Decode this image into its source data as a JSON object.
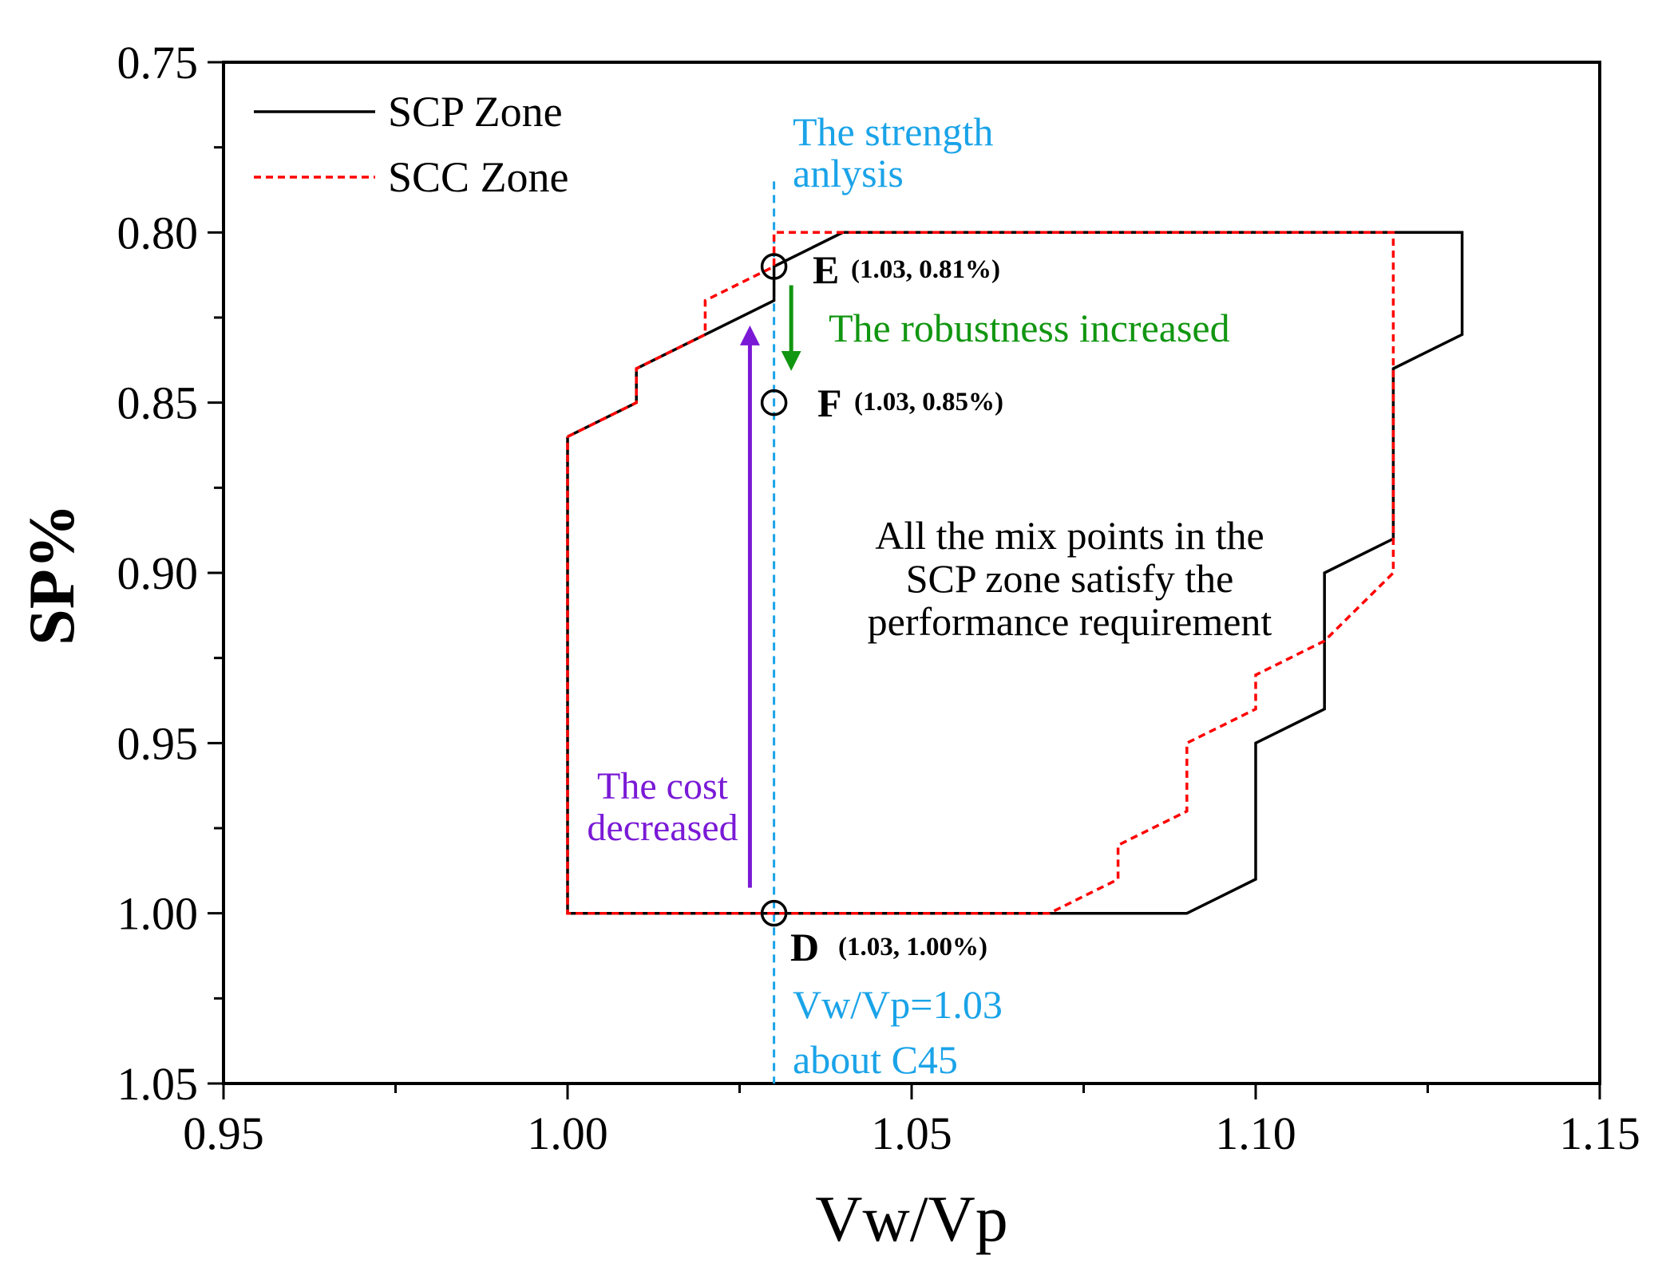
{
  "chart_data": {
    "type": "line",
    "xlabel": "Vw/Vp",
    "ylabel": "SP%",
    "xlim": [
      0.95,
      1.15
    ],
    "ylim": [
      0.75,
      1.05
    ],
    "y_inverted": true,
    "x_ticks": [
      0.95,
      1.0,
      1.05,
      1.1,
      1.15
    ],
    "x_tick_labels": [
      "0.95",
      "1.00",
      "1.05",
      "1.10",
      "1.15"
    ],
    "y_ticks": [
      0.75,
      0.8,
      0.85,
      0.9,
      0.95,
      1.0,
      1.05
    ],
    "y_tick_labels": [
      "0.75",
      "0.80",
      "0.85",
      "0.90",
      "0.95",
      "1.00",
      "1.05"
    ],
    "legend": {
      "position": "top-left",
      "entries": [
        {
          "label": "SCP Zone",
          "color": "#000000",
          "style": "solid"
        },
        {
          "label": "SCC Zone",
          "color": "#ff0000",
          "style": "dotted"
        }
      ]
    },
    "series": [
      {
        "name": "SCP Zone",
        "color": "#000000",
        "style": "solid",
        "points": [
          [
            1.0,
            0.86
          ],
          [
            1.01,
            0.85
          ],
          [
            1.01,
            0.84
          ],
          [
            1.03,
            0.82
          ],
          [
            1.03,
            0.81
          ],
          [
            1.04,
            0.8
          ],
          [
            1.13,
            0.8
          ],
          [
            1.13,
            0.83
          ],
          [
            1.12,
            0.84
          ],
          [
            1.12,
            0.89
          ],
          [
            1.11,
            0.9
          ],
          [
            1.11,
            0.94
          ],
          [
            1.1,
            0.95
          ],
          [
            1.1,
            0.99
          ],
          [
            1.09,
            1.0
          ],
          [
            1.0,
            1.0
          ],
          [
            1.0,
            0.86
          ]
        ]
      },
      {
        "name": "SCC Zone",
        "color": "#ff0000",
        "style": "dotted",
        "points": [
          [
            1.0,
            0.86
          ],
          [
            1.01,
            0.85
          ],
          [
            1.01,
            0.84
          ],
          [
            1.02,
            0.83
          ],
          [
            1.02,
            0.82
          ],
          [
            1.03,
            0.81
          ],
          [
            1.03,
            0.8
          ],
          [
            1.12,
            0.8
          ],
          [
            1.12,
            0.9
          ],
          [
            1.11,
            0.92
          ],
          [
            1.1,
            0.93
          ],
          [
            1.1,
            0.94
          ],
          [
            1.09,
            0.95
          ],
          [
            1.09,
            0.97
          ],
          [
            1.08,
            0.98
          ],
          [
            1.08,
            0.99
          ],
          [
            1.07,
            1.0
          ],
          [
            1.0,
            1.0
          ],
          [
            1.0,
            0.86
          ]
        ]
      }
    ],
    "vertical_line": {
      "x": 1.03,
      "color": "#1aa3e8"
    },
    "points": [
      {
        "id": "E",
        "x": 1.03,
        "y": 0.81,
        "label": "E",
        "coord": "(1.03, 0.81%)"
      },
      {
        "id": "F",
        "x": 1.03,
        "y": 0.85,
        "label": "F",
        "coord": "(1.03, 0.85%)"
      },
      {
        "id": "D",
        "x": 1.03,
        "y": 1.0,
        "label": "D",
        "coord": "(1.03, 1.00%)"
      }
    ],
    "annotations": {
      "strength_line1": "The strength",
      "strength_line2": "anlysis",
      "robustness": "The robustness increased",
      "cost_line1": "The cost",
      "cost_line2": "decreased",
      "zone_line1": "All the mix points in the",
      "zone_line2": "SCP zone satisfy the",
      "zone_line3": "performance requirement",
      "vwvp_line1": "Vw/Vp=1.03",
      "vwvp_line2": "about C45"
    },
    "colors": {
      "blue": "#1aa3e8",
      "green": "#119611",
      "purple": "#7a1ad6",
      "red": "#ff0000",
      "black": "#000000"
    }
  }
}
